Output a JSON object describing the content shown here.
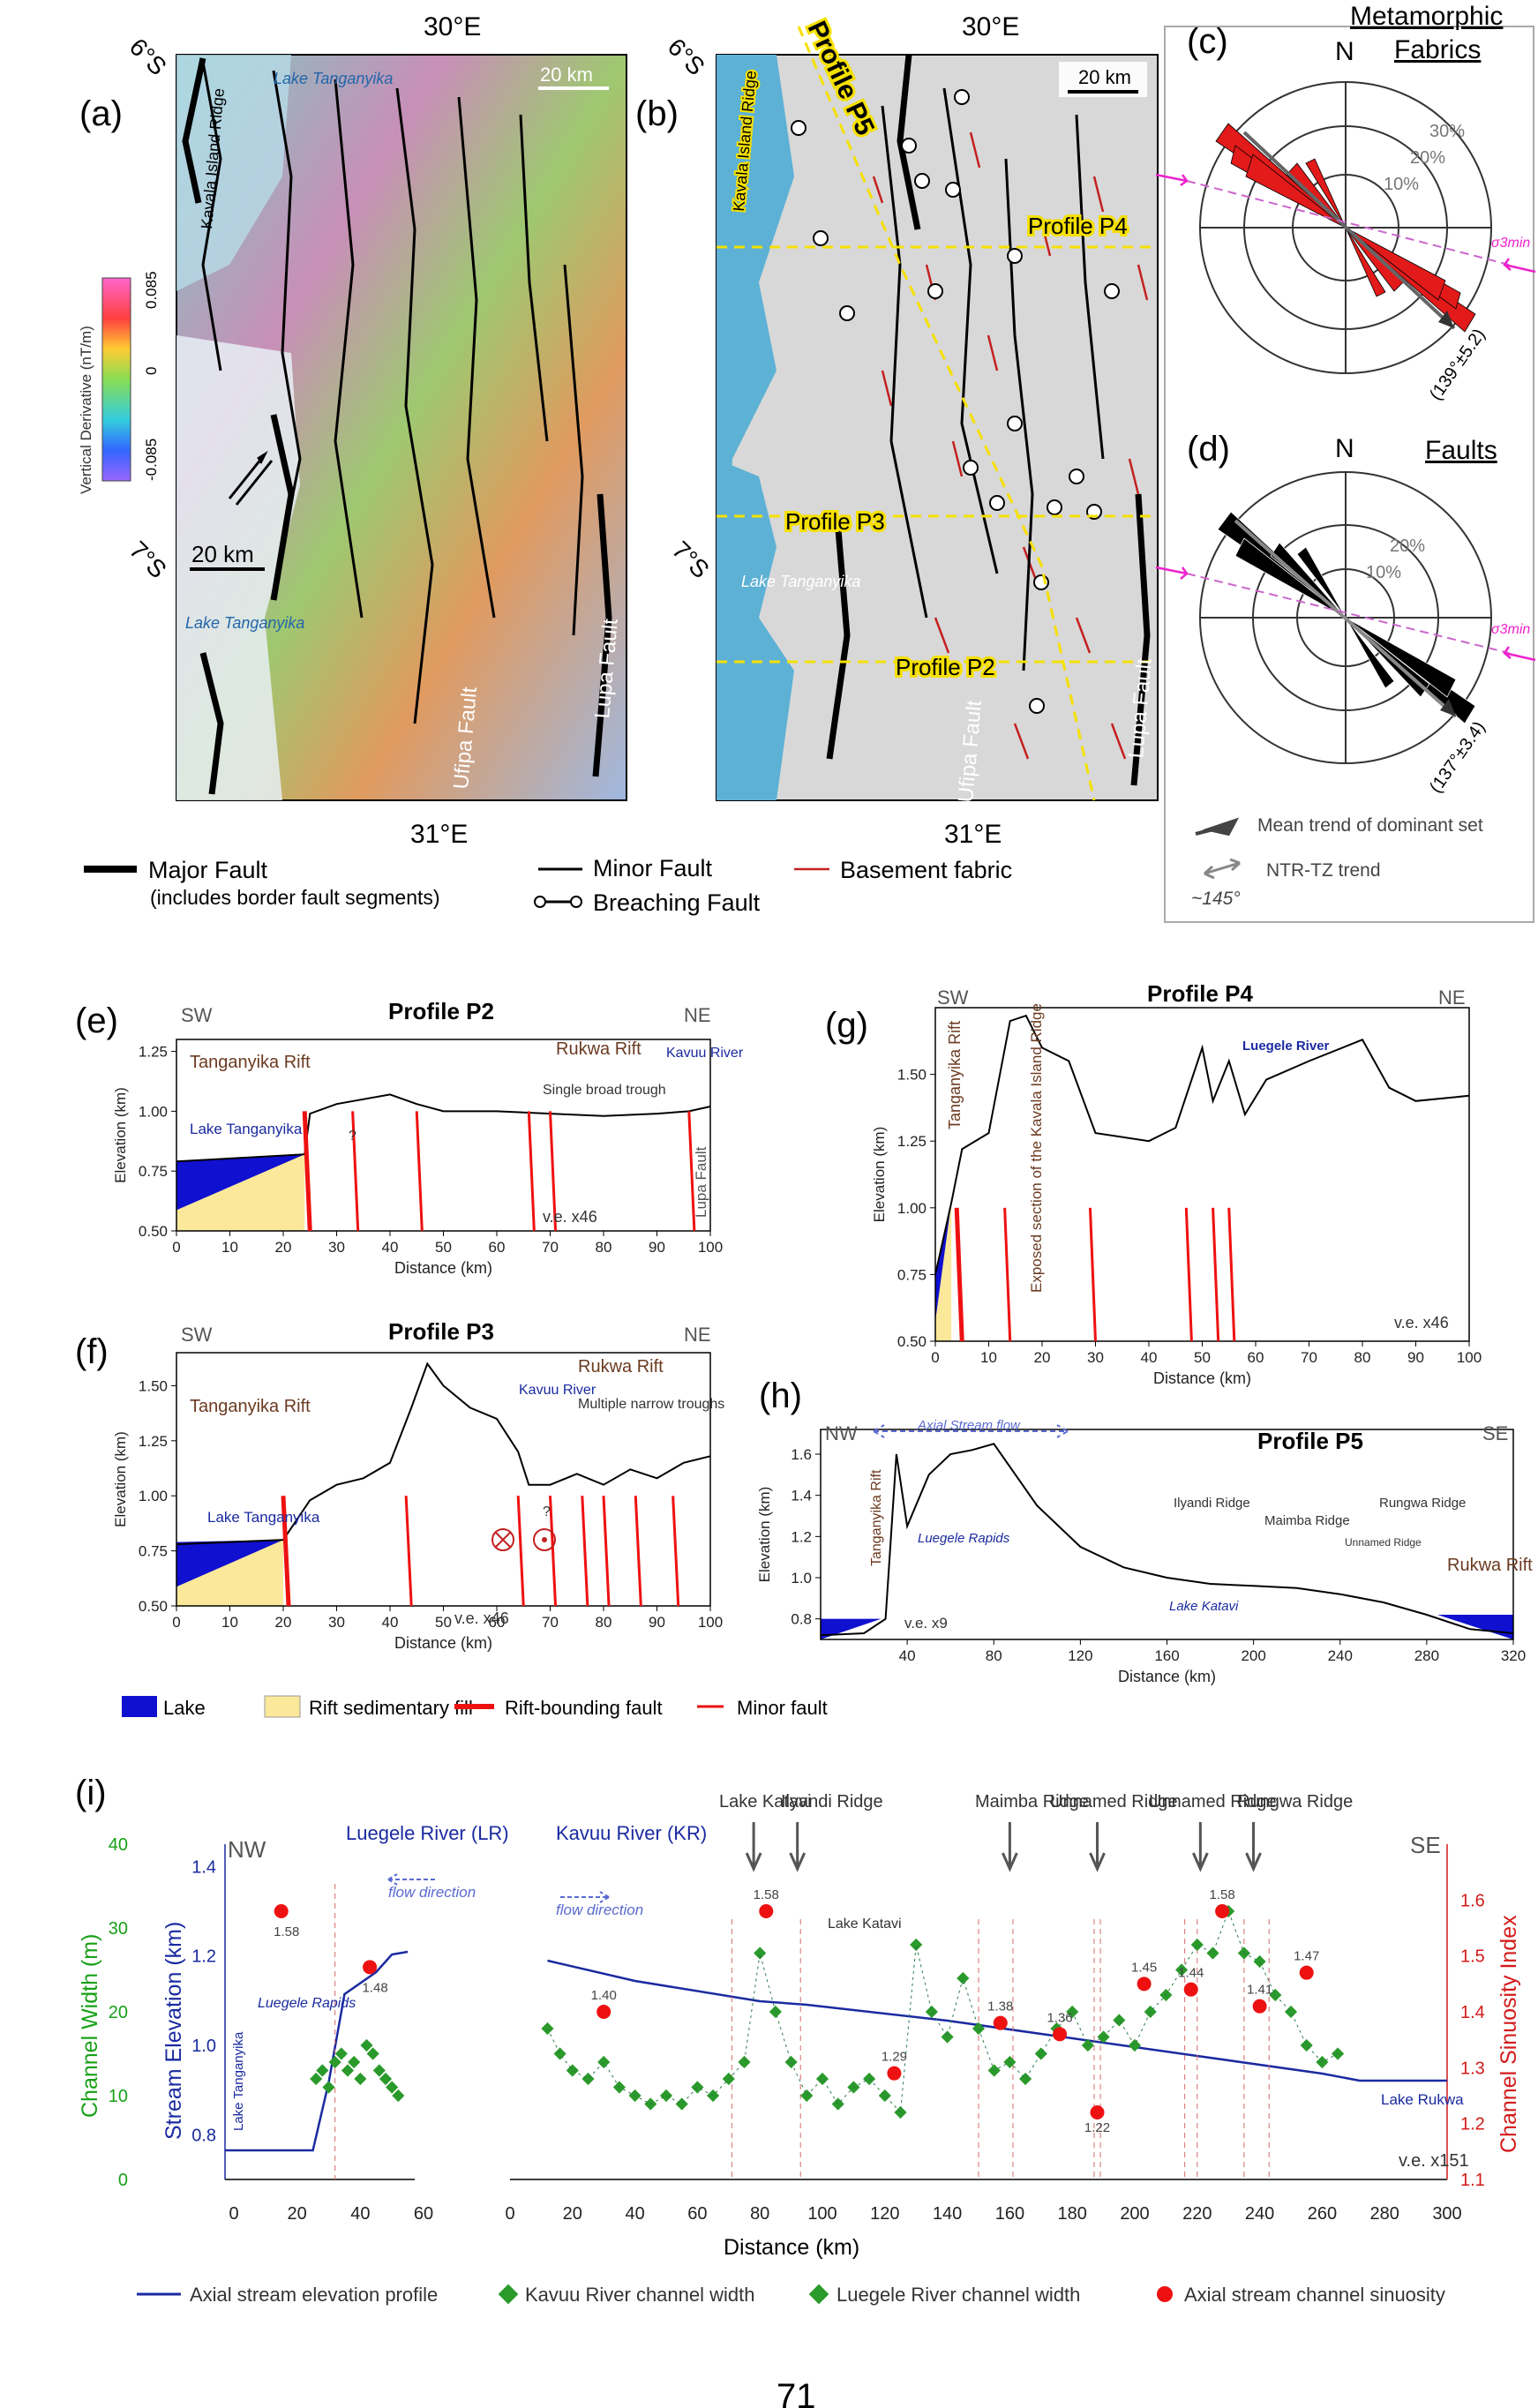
{
  "figure": {
    "page_number": "71",
    "panels": {
      "a": {
        "letter": "(a)",
        "lon_top": "30°E",
        "lon_bottom": "31°E",
        "lat_top": "6°S",
        "lat_bottom": "7°S",
        "scale_top": "20 km",
        "scale_left": "20 km",
        "lake_top": "Lake Tanganyika",
        "lake_bottom": "Lake Tanganyika",
        "ridge": "Kavala Island Ridge",
        "fault_ufipa": "Ufipa Fault",
        "fault_lupa": "Lupa Fault",
        "colorbar_label": "Vertical Derivative (nT/m)",
        "colorbar_ticks": [
          "0.085",
          "0",
          "-0.085"
        ]
      },
      "b": {
        "letter": "(b)",
        "lon_top": "30°E",
        "lon_bottom": "31°E",
        "lat_top": "6°S",
        "lat_bottom": "7°S",
        "scale": "20 km",
        "profiles": [
          "Profile P5",
          "Profile P4",
          "Profile P3",
          "Profile P2"
        ],
        "ridge": "Kavala Island Ridge",
        "lake": "Lake Tanganyika",
        "fault_ufipa": "Ufipa Fault",
        "fault_lupa": "Lupa Fault"
      },
      "c": {
        "letter": "(c)",
        "title_line1": "Metamorphic",
        "title_line2": "Fabrics",
        "north": "N",
        "rings": [
          "30%",
          "20%",
          "10%"
        ],
        "mean": "(139°±5.2)",
        "sigma": "σ3min"
      },
      "d": {
        "letter": "(d)",
        "title": "Faults",
        "north": "N",
        "rings": [
          "20%",
          "10%"
        ],
        "mean": "(137°±3.4)",
        "sigma": "σ3min"
      }
    },
    "rose_legend": {
      "mean_trend": "Mean trend of dominant set",
      "ntr": "NTR-TZ trend",
      "ntr_value": "~145°"
    },
    "map_legend": {
      "major": "Major Fault",
      "major_note": "(includes border fault segments)",
      "minor": "Minor Fault",
      "breaching": "Breaching Fault",
      "basement": "Basement fabric"
    },
    "profile_legend": {
      "lake": "Lake",
      "fill": "Rift sedimentary fill",
      "bounding": "Rift-bounding fault",
      "minor": "Minor fault"
    },
    "profiles": {
      "e": {
        "letter": "(e)",
        "title": "Profile P2",
        "sw": "SW",
        "ne": "NE",
        "labels": [
          "Tanganyika Rift",
          "Rukwa Rift",
          "Kavuu River",
          "Lake Tanganyika",
          "Single broad trough",
          "Lupa Fault",
          "v.e. x46",
          "?"
        ],
        "xlabel": "Distance (km)",
        "ylabel": "Elevation (km)",
        "x": [
          0,
          24,
          25,
          30,
          40,
          45,
          50,
          60,
          70,
          80,
          90,
          96,
          100
        ],
        "y": [
          0.79,
          0.82,
          0.99,
          1.03,
          1.07,
          1.03,
          1.0,
          1.0,
          0.99,
          0.98,
          0.99,
          1.0,
          1.02
        ],
        "xticks": [
          "0",
          "10",
          "20",
          "30",
          "40",
          "50",
          "60",
          "70",
          "80",
          "90",
          "100"
        ],
        "yticks": [
          "0.50",
          "0.75",
          "1.00",
          "1.25"
        ]
      },
      "f": {
        "letter": "(f)",
        "title": "Profile P3",
        "sw": "SW",
        "ne": "NE",
        "labels": [
          "Tanganyika Rift",
          "Rukwa Rift",
          "Kavuu River",
          "Lake Tanganyika",
          "Multiple narrow troughs",
          "v.e. x46",
          "?"
        ],
        "xlabel": "Distance (km)",
        "ylabel": "Elevation (km)",
        "x": [
          0,
          20,
          25,
          30,
          35,
          40,
          44,
          47,
          50,
          55,
          60,
          64,
          66,
          70,
          75,
          80,
          85,
          90,
          95,
          100
        ],
        "y": [
          0.78,
          0.8,
          0.98,
          1.05,
          1.08,
          1.15,
          1.4,
          1.6,
          1.5,
          1.4,
          1.35,
          1.2,
          1.05,
          1.05,
          1.1,
          1.05,
          1.12,
          1.08,
          1.15,
          1.18
        ],
        "xticks": [
          "0",
          "10",
          "20",
          "30",
          "40",
          "50",
          "60",
          "70",
          "80",
          "90",
          "100"
        ],
        "yticks": [
          "0.50",
          "0.75",
          "1.00",
          "1.25",
          "1.50"
        ]
      },
      "g": {
        "letter": "(g)",
        "title": "Profile P4",
        "sw": "SW",
        "ne": "NE",
        "labels": [
          "Tanganyika Rift",
          "Exposed section of the Kavala Island Ridge",
          "Luegele River",
          "v.e. x46"
        ],
        "xlabel": "Distance (km)",
        "ylabel": "Elevation (km)",
        "x": [
          0,
          3,
          5,
          10,
          14,
          17,
          20,
          25,
          30,
          40,
          45,
          50,
          52,
          55,
          58,
          62,
          70,
          80,
          85,
          90,
          100
        ],
        "y": [
          0.75,
          1.02,
          1.22,
          1.28,
          1.7,
          1.72,
          1.6,
          1.55,
          1.28,
          1.25,
          1.3,
          1.6,
          1.4,
          1.55,
          1.35,
          1.48,
          1.55,
          1.63,
          1.45,
          1.4,
          1.42
        ],
        "xticks": [
          "0",
          "10",
          "20",
          "30",
          "40",
          "50",
          "60",
          "70",
          "80",
          "90",
          "100"
        ],
        "yticks": [
          "0.50",
          "0.75",
          "1.00",
          "1.25",
          "1.50"
        ]
      },
      "h": {
        "letter": "(h)",
        "title": "Profile P5",
        "nw": "NW",
        "se": "SE",
        "labels": [
          "Axial Stream flow",
          "Tanganyika Rift",
          "Luegele Rapids",
          "Ilyandi Ridge",
          "Maimba Ridge",
          "Unnamed Ridge",
          "Rungwa Ridge",
          "Lake Katavi",
          "Rukwa Rift",
          "v.e. x9"
        ],
        "xlabel": "Distance (km)",
        "ylabel": "Elevation (km)",
        "x": [
          0,
          20,
          30,
          35,
          40,
          50,
          60,
          70,
          80,
          90,
          100,
          120,
          140,
          160,
          180,
          200,
          220,
          240,
          260,
          280,
          300,
          320
        ],
        "y": [
          0.72,
          0.73,
          0.8,
          1.6,
          1.25,
          1.5,
          1.6,
          1.62,
          1.65,
          1.5,
          1.35,
          1.15,
          1.05,
          1.0,
          0.97,
          0.96,
          0.95,
          0.92,
          0.88,
          0.82,
          0.75,
          0.73
        ],
        "xticks": [
          "40",
          "80",
          "120",
          "160",
          "200",
          "240",
          "280",
          "320"
        ],
        "yticks": [
          "0.8",
          "1.0",
          "1.2",
          "1.4",
          "1.6"
        ]
      }
    },
    "panel_i": {
      "letter": "(i)",
      "nw": "NW",
      "se": "SE",
      "left_y1_label": "Channel Width (m)",
      "left_y1_ticks": [
        "0",
        "10",
        "20",
        "30",
        "40"
      ],
      "left_y2_label": "Stream Elevation (km)",
      "left_y2_ticks": [
        "0.8",
        "1.0",
        "1.2",
        "1.4"
      ],
      "right_y_label": "Channel Sinuosity Index",
      "right_y_ticks": [
        "1.1",
        "1.2",
        "1.3",
        "1.4",
        "1.5",
        "1.6"
      ],
      "xlabel": "Distance (km)",
      "xticks_left": [
        "0",
        "20",
        "40",
        "60"
      ],
      "xticks_right": [
        "0",
        "20",
        "40",
        "60",
        "80",
        "100",
        "120",
        "140",
        "160",
        "180",
        "200",
        "220",
        "240",
        "260",
        "280",
        "300"
      ],
      "lr_title": "Luegele River (LR)",
      "kr_title": "Kavuu River (KR)",
      "flow": "flow direction",
      "annotations": [
        "Lake Katavi",
        "Ilyandi Ridge",
        "Maimba Ridge",
        "Unnamed Ridge",
        "Unnamed Ridge",
        "Rungwa Ridge"
      ],
      "inner_labels": [
        "Luegele Rapids",
        "Lake Tanganyika",
        "Lake Katavi",
        "Lake Rukwa",
        "v.e. x151"
      ],
      "sinuosity_lr": [
        {
          "x": 15,
          "v": 1.58
        },
        {
          "x": 43,
          "v": 1.48
        }
      ],
      "sinuosity_kr": [
        {
          "x": 30,
          "v": 1.4
        },
        {
          "x": 82,
          "v": 1.58
        },
        {
          "x": 123,
          "v": 1.29
        },
        {
          "x": 157,
          "v": 1.38
        },
        {
          "x": 176,
          "v": 1.36
        },
        {
          "x": 188,
          "v": 1.22
        },
        {
          "x": 203,
          "v": 1.45
        },
        {
          "x": 218,
          "v": 1.44
        },
        {
          "x": 228,
          "v": 1.58
        },
        {
          "x": 240,
          "v": 1.41
        },
        {
          "x": 255,
          "v": 1.47
        }
      ],
      "legend": {
        "elev": "Axial stream elevation profile",
        "kr": "Kavuu River channel width",
        "lr": "Luegele River channel width",
        "sin": "Axial stream channel sinuosity"
      }
    }
  }
}
